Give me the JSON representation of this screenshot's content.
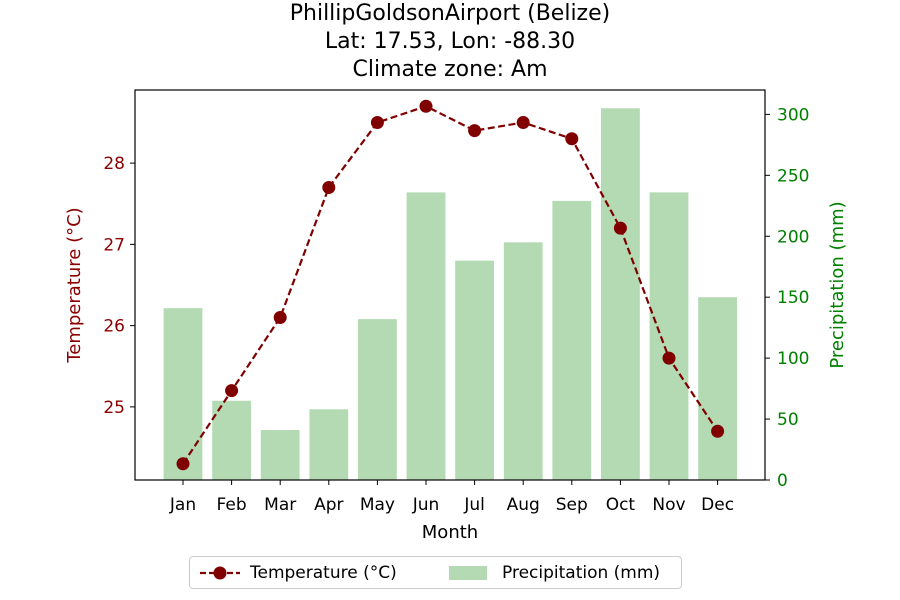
{
  "chart_data": {
    "type": "bar+line",
    "title_lines": [
      "PhillipGoldsonAirport (Belize)",
      "Lat: 17.53, Lon: -88.30",
      "Climate zone: Am"
    ],
    "xlabel": "Month",
    "ylabel_left": "Temperature (°C)",
    "ylabel_right": "Precipitation (mm)",
    "categories": [
      "Jan",
      "Feb",
      "Mar",
      "Apr",
      "May",
      "Jun",
      "Jul",
      "Aug",
      "Sep",
      "Oct",
      "Nov",
      "Dec"
    ],
    "temperature": {
      "name": "Temperature (°C)",
      "values": [
        24.3,
        25.2,
        26.1,
        27.7,
        28.5,
        28.7,
        28.4,
        28.5,
        28.3,
        27.2,
        25.6,
        24.7
      ],
      "ylim": [
        24.1,
        28.9
      ],
      "ticks": [
        25,
        26,
        27,
        28
      ],
      "color": "#800000"
    },
    "precipitation": {
      "name": "Precipitation (mm)",
      "values": [
        141,
        65,
        41,
        58,
        132,
        236,
        180,
        195,
        229,
        305,
        236,
        150
      ],
      "ylim": [
        0,
        320
      ],
      "ticks": [
        0,
        50,
        100,
        150,
        200,
        250,
        300
      ],
      "color": "#b3dab3"
    },
    "axis_color_left": "#8b0000",
    "axis_color_right": "#008000",
    "legend": {
      "placement": "bottom-center",
      "entries": [
        "Temperature (°C)",
        "Precipitation (mm)"
      ]
    }
  }
}
